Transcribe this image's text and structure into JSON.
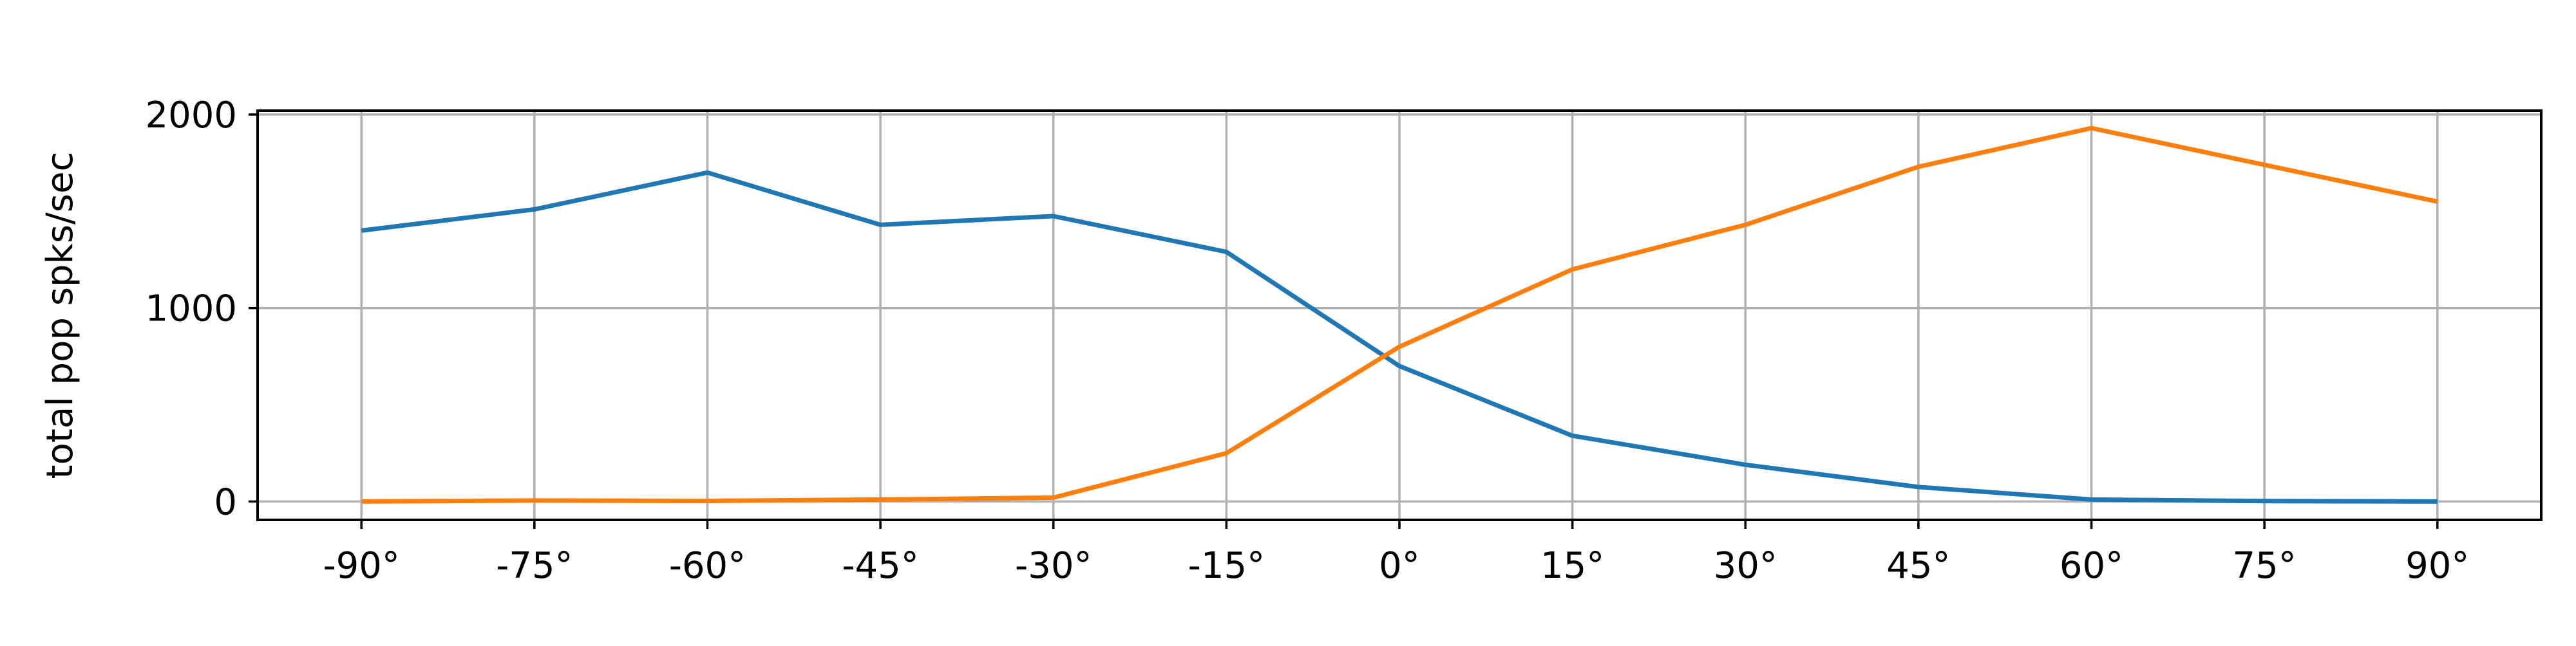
{
  "chart_data": {
    "type": "line",
    "title": "",
    "xlabel": "",
    "ylabel": "total pop spks/sec",
    "x": [
      -90,
      -75,
      -60,
      -45,
      -30,
      -15,
      0,
      15,
      30,
      45,
      60,
      75,
      90
    ],
    "x_tick_labels": [
      "-90°",
      "-75°",
      "-60°",
      "-45°",
      "-30°",
      "-15°",
      "0°",
      "15°",
      "30°",
      "45°",
      "60°",
      "75°",
      "90°"
    ],
    "y_ticks": [
      0,
      1000,
      2000
    ],
    "y_tick_labels": [
      "0",
      "1000",
      "2000"
    ],
    "xlim": [
      -99,
      99
    ],
    "ylim": [
      -95,
      2020
    ],
    "grid": true,
    "series": [
      {
        "values": [
          1400,
          1510,
          1700,
          1430,
          1475,
          1290,
          700,
          340,
          190,
          75,
          10,
          2,
          0
        ],
        "color": "#1f77b4"
      },
      {
        "values": [
          0,
          5,
          3,
          10,
          20,
          250,
          800,
          1200,
          1430,
          1730,
          1930,
          1740,
          1550
        ],
        "color": "#ff7f0e"
      }
    ],
    "colors": {
      "grid": "#b0b0b0",
      "axes": "#000000"
    }
  }
}
